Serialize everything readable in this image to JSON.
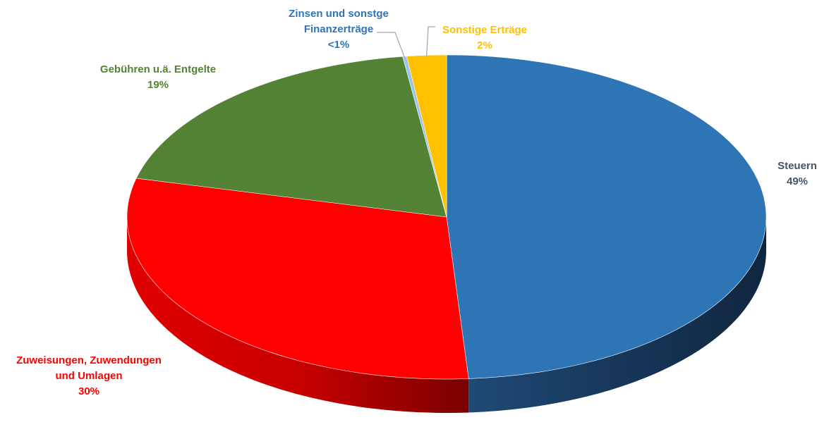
{
  "chart_data": {
    "type": "pie",
    "style": "3d",
    "title": "",
    "slices": [
      {
        "name": "Steuern",
        "value": 49,
        "label": "49%",
        "color": "#2E75B6"
      },
      {
        "name": "Zuweisungen, Zuwendungen und Umlagen",
        "value": 30,
        "label": "30%",
        "color": "#FF0000"
      },
      {
        "name": "Gebühren u.ä. Entgelte",
        "value": 19,
        "label": "19%",
        "color": "#548235"
      },
      {
        "name": "Zinsen und sonstge Finanzerträge",
        "value": 0.2,
        "label": "<1%",
        "color": "#9DC3E6"
      },
      {
        "name": "Sonstige Erträge",
        "value": 2,
        "label": "2%",
        "color": "#FFC000"
      }
    ],
    "data_labels": [
      {
        "lines": [
          "Steuern"
        ],
        "value_label": "49%",
        "color": "#44546A"
      },
      {
        "lines": [
          "Zuweisungen, Zuwendungen",
          "und Umlagen"
        ],
        "value_label": "30%",
        "color": "#FF0000"
      },
      {
        "lines": [
          "Gebühren u.ä. Entgelte"
        ],
        "value_label": "19%",
        "color": "#548235"
      },
      {
        "lines": [
          "Zinsen und sonstge",
          "Finanzerträge"
        ],
        "value_label": "<1%",
        "color": "#2E75B6"
      },
      {
        "lines": [
          "Sonstige Erträge"
        ],
        "value_label": "2%",
        "color": "#FFC000"
      }
    ],
    "legend": "none"
  }
}
